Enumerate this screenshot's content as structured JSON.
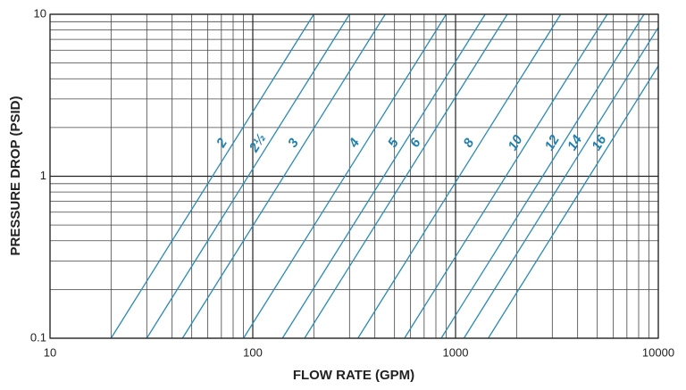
{
  "chart_data": {
    "type": "line",
    "x_label": "FLOW RATE (GPM)",
    "y_label": "PRESSURE DROP (PSID)",
    "xscale": "log",
    "yscale": "log",
    "grid": true,
    "xlim": [
      10,
      10000
    ],
    "xticks": [
      10,
      100,
      1000,
      10000
    ],
    "ylim": [
      0.1,
      10
    ],
    "yticks": [
      0.1,
      1,
      10
    ],
    "series": [
      {
        "name": "2",
        "color": "#2a8bb5",
        "x": [
          20,
          200
        ],
        "values": [
          0.1,
          10
        ]
      },
      {
        "name": "2½",
        "color": "#2a8bb5",
        "x": [
          30,
          300
        ],
        "values": [
          0.1,
          10
        ]
      },
      {
        "name": "3",
        "color": "#2a8bb5",
        "x": [
          45,
          450
        ],
        "values": [
          0.1,
          10
        ]
      },
      {
        "name": "4",
        "color": "#2a8bb5",
        "x": [
          90,
          900
        ],
        "values": [
          0.1,
          10
        ]
      },
      {
        "name": "5",
        "color": "#2a8bb5",
        "x": [
          140,
          1400
        ],
        "values": [
          0.1,
          10
        ]
      },
      {
        "name": "6",
        "color": "#2a8bb5",
        "x": [
          180,
          1800
        ],
        "values": [
          0.1,
          10
        ]
      },
      {
        "name": "8",
        "color": "#2a8bb5",
        "x": [
          330,
          3300
        ],
        "values": [
          0.1,
          10
        ]
      },
      {
        "name": "10",
        "color": "#2a8bb5",
        "x": [
          560,
          5600
        ],
        "values": [
          0.1,
          10
        ]
      },
      {
        "name": "12",
        "color": "#2a8bb5",
        "x": [
          850,
          8500
        ],
        "values": [
          0.1,
          10
        ]
      },
      {
        "name": "14",
        "color": "#2a8bb5",
        "x": [
          1100,
          10000
        ],
        "values": [
          0.1,
          8.3
        ]
      },
      {
        "name": "16",
        "color": "#2a8bb5",
        "x": [
          1450,
          10000
        ],
        "values": [
          0.1,
          4.8
        ]
      }
    ]
  }
}
